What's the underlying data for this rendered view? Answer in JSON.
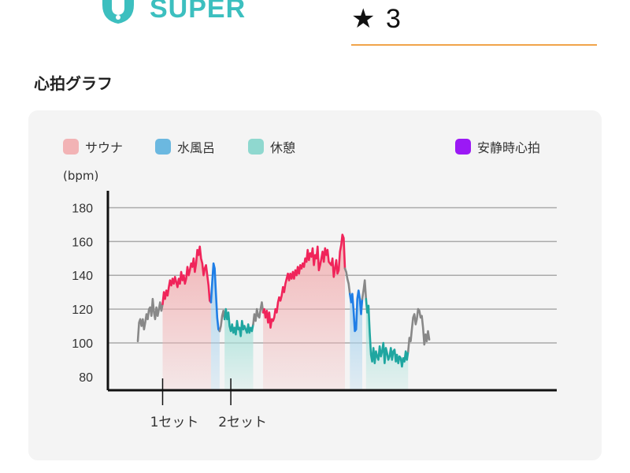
{
  "header": {
    "logo_text": "SUPER",
    "logo_icon": "sauna-bell-icon",
    "rating_icon": "star-icon",
    "rating_value": "3"
  },
  "section_title": "心拍グラフ",
  "legend": [
    {
      "label": "サウナ",
      "color": "#f2b3b5"
    },
    {
      "label": "水風呂",
      "color": "#6bb8e0"
    },
    {
      "label": "休憩",
      "color": "#8fd8cf"
    },
    {
      "label": "安静時心拍",
      "color": "#9b19f5"
    }
  ],
  "colors": {
    "sauna_line": "#f0245a",
    "bath_line": "#1f7ee6",
    "rest_line": "#1fa6a0",
    "other_line": "#888888",
    "accent": "#3cbfbf",
    "underline": "#f0a44a"
  },
  "chart_data": {
    "type": "line",
    "ylabel": "(bpm)",
    "ylim": [
      72,
      190
    ],
    "yticks": [
      80,
      100,
      120,
      140,
      160,
      180
    ],
    "grid": true,
    "legend_position": "top",
    "set_markers": [
      {
        "label": "1セット",
        "x": 20
      },
      {
        "label": "2セット",
        "x": 75
      }
    ],
    "xlim": [
      0,
      254
    ],
    "series": [
      {
        "name": "",
        "phase": "other",
        "x": [
          0,
          1,
          2,
          3,
          4,
          5,
          6,
          7,
          8,
          9,
          10,
          11,
          12,
          13,
          14,
          15,
          16,
          17,
          18,
          19,
          20
        ],
        "y": [
          101,
          112,
          114,
          110,
          114,
          108,
          112,
          117,
          114,
          120,
          121,
          116,
          126,
          118,
          114,
          121,
          116,
          120,
          124,
          119,
          123
        ]
      },
      {
        "name": "サウナ",
        "phase": "sauna",
        "x": [
          20,
          21,
          22,
          23,
          24,
          25,
          26,
          27,
          28,
          29,
          30,
          31,
          32,
          33,
          34,
          35,
          36,
          37,
          38,
          39,
          40,
          41,
          42,
          43,
          44,
          45,
          46,
          47,
          48,
          49,
          50,
          51,
          52,
          53,
          54,
          55,
          56,
          57,
          58,
          59
        ],
        "y": [
          123,
          130,
          126,
          131,
          128,
          133,
          137,
          134,
          138,
          135,
          139,
          136,
          133,
          138,
          135,
          142,
          137,
          140,
          135,
          138,
          145,
          140,
          143,
          147,
          145,
          150,
          142,
          147,
          155,
          152,
          157,
          150,
          147,
          140,
          144,
          146,
          140,
          134,
          125,
          124
        ]
      },
      {
        "name": "水風呂",
        "phase": "bath",
        "x": [
          59,
          60,
          61,
          62,
          63,
          64,
          65,
          66
        ],
        "y": [
          124,
          136,
          147,
          144,
          129,
          115,
          108,
          107
        ]
      },
      {
        "name": "",
        "phase": "other",
        "x": [
          66,
          67,
          68,
          69,
          70
        ],
        "y": [
          107,
          110,
          116,
          119,
          114
        ]
      },
      {
        "name": "休憩",
        "phase": "rest",
        "x": [
          70,
          71,
          72,
          73,
          74,
          75,
          76,
          77,
          78,
          79,
          80,
          81,
          82,
          83,
          84,
          85,
          86,
          87,
          88,
          89,
          90,
          91,
          92,
          93
        ],
        "y": [
          114,
          120,
          114,
          118,
          110,
          107,
          111,
          106,
          109,
          105,
          113,
          108,
          109,
          104,
          113,
          108,
          110,
          108,
          106,
          111,
          106,
          109,
          107,
          111
        ]
      },
      {
        "name": "",
        "phase": "other",
        "x": [
          93,
          94,
          95,
          96,
          97,
          98,
          99,
          100,
          101
        ],
        "y": [
          111,
          117,
          113,
          120,
          116,
          115,
          120,
          124,
          118
        ]
      },
      {
        "name": "サウナ",
        "phase": "sauna",
        "x": [
          101,
          102,
          103,
          104,
          105,
          106,
          107,
          108,
          109,
          110,
          111,
          112,
          113,
          114,
          115,
          116,
          117,
          118,
          119,
          120,
          121,
          122,
          123,
          124,
          125,
          126,
          127,
          128,
          129,
          130,
          131,
          132,
          133,
          134,
          135,
          136,
          137,
          138,
          139,
          140,
          141,
          142,
          143,
          144,
          145,
          146,
          147,
          148,
          149,
          150,
          151,
          152,
          153,
          154,
          155,
          156,
          157,
          158,
          159,
          160,
          161,
          162,
          163,
          164,
          165,
          166,
          167
        ],
        "y": [
          118,
          120,
          115,
          119,
          112,
          118,
          109,
          114,
          113,
          115,
          120,
          118,
          124,
          127,
          125,
          128,
          133,
          130,
          135,
          138,
          141,
          137,
          141,
          138,
          142,
          138,
          143,
          140,
          145,
          141,
          146,
          144,
          147,
          145,
          150,
          148,
          155,
          149,
          153,
          151,
          156,
          146,
          152,
          150,
          157,
          143,
          146,
          150,
          154,
          148,
          156,
          152,
          155,
          148,
          147,
          146,
          150,
          139,
          144,
          149,
          141,
          143,
          154,
          158,
          164,
          162,
          144
        ]
      },
      {
        "name": "",
        "phase": "other",
        "x": [
          167,
          168,
          169,
          170,
          171
        ],
        "y": [
          144,
          142,
          138,
          135,
          129
        ]
      },
      {
        "name": "水風呂",
        "phase": "bath",
        "x": [
          171,
          172,
          173,
          174,
          175,
          176,
          177,
          178,
          179,
          180,
          181
        ],
        "y": [
          129,
          124,
          129,
          119,
          107,
          108,
          126,
          131,
          126,
          117,
          126
        ]
      },
      {
        "name": "",
        "phase": "other",
        "x": [
          181,
          182,
          183,
          184
        ],
        "y": [
          126,
          131,
          137,
          126
        ]
      },
      {
        "name": "休憩",
        "phase": "rest",
        "x": [
          184,
          185,
          186,
          187,
          188,
          189,
          190,
          191,
          192,
          193,
          194,
          195,
          196,
          197,
          198,
          199,
          200,
          201,
          202,
          203,
          204,
          205,
          206,
          207,
          208,
          209,
          210,
          211,
          212,
          213,
          214,
          215,
          216,
          217,
          218
        ],
        "y": [
          126,
          118,
          122,
          106,
          93,
          89,
          97,
          88,
          95,
          92,
          90,
          98,
          92,
          95,
          100,
          88,
          97,
          94,
          90,
          92,
          97,
          90,
          95,
          96,
          89,
          93,
          88,
          92,
          91,
          86,
          91,
          89,
          95,
          90,
          95
        ]
      },
      {
        "name": "",
        "phase": "other",
        "x": [
          218,
          219,
          220,
          221,
          222,
          223,
          224,
          225,
          226,
          227,
          228,
          229,
          230,
          231,
          232,
          233,
          234,
          235
        ],
        "y": [
          95,
          103,
          101,
          108,
          115,
          117,
          111,
          114,
          120,
          119,
          115,
          116,
          109,
          99,
          105,
          101,
          107,
          102
        ]
      }
    ]
  }
}
